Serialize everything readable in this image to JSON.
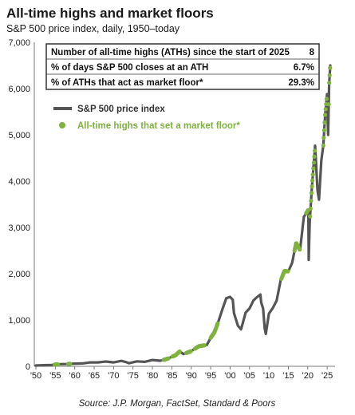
{
  "chart_data": {
    "type": "line",
    "title": "All-time highs and market floors",
    "subtitle": "S&P 500 price index, daily, 1950–today",
    "xlim": [
      1950,
      2026
    ],
    "ylim": [
      0,
      7000
    ],
    "x_ticks": [
      {
        "value": 1950,
        "label": "'50"
      },
      {
        "value": 1955,
        "label": "'55"
      },
      {
        "value": 1960,
        "label": "'60"
      },
      {
        "value": 1965,
        "label": "'65"
      },
      {
        "value": 1970,
        "label": "'70"
      },
      {
        "value": 1975,
        "label": "'75"
      },
      {
        "value": 1980,
        "label": "'80"
      },
      {
        "value": 1985,
        "label": "'85"
      },
      {
        "value": 1990,
        "label": "'90"
      },
      {
        "value": 1995,
        "label": "'95"
      },
      {
        "value": 2000,
        "label": "'00"
      },
      {
        "value": 2005,
        "label": "'05"
      },
      {
        "value": 2010,
        "label": "'10"
      },
      {
        "value": 2015,
        "label": "'15"
      },
      {
        "value": 2020,
        "label": "'20"
      },
      {
        "value": 2025,
        "label": "'25"
      }
    ],
    "y_ticks": [
      {
        "value": 0,
        "label": "0"
      },
      {
        "value": 1000,
        "label": "1,000"
      },
      {
        "value": 2000,
        "label": "2,000"
      },
      {
        "value": 3000,
        "label": "3,000"
      },
      {
        "value": 4000,
        "label": "4,000"
      },
      {
        "value": 5000,
        "label": "5,000"
      },
      {
        "value": 6000,
        "label": "6,000"
      },
      {
        "value": 7000,
        "label": "7,000"
      }
    ],
    "series": [
      {
        "name": "S&P 500 price index",
        "color": "#555555",
        "points": [
          [
            1950,
            17
          ],
          [
            1952,
            24
          ],
          [
            1954,
            30
          ],
          [
            1956,
            46
          ],
          [
            1958,
            50
          ],
          [
            1960,
            58
          ],
          [
            1962,
            62
          ],
          [
            1964,
            84
          ],
          [
            1966,
            85
          ],
          [
            1968,
            103
          ],
          [
            1970,
            85
          ],
          [
            1972,
            118
          ],
          [
            1973,
            97
          ],
          [
            1974,
            68
          ],
          [
            1976,
            107
          ],
          [
            1978,
            96
          ],
          [
            1980,
            136
          ],
          [
            1982,
            120
          ],
          [
            1984,
            167
          ],
          [
            1986,
            242
          ],
          [
            1987,
            320
          ],
          [
            1988,
            265
          ],
          [
            1990,
            330
          ],
          [
            1992,
            436
          ],
          [
            1994,
            460
          ],
          [
            1995,
            615
          ],
          [
            1996,
            740
          ],
          [
            1997,
            970
          ],
          [
            1998,
            1229
          ],
          [
            1999,
            1469
          ],
          [
            2000,
            1500
          ],
          [
            2000.7,
            1436
          ],
          [
            2001,
            1150
          ],
          [
            2002,
            880
          ],
          [
            2002.8,
            800
          ],
          [
            2003,
            850
          ],
          [
            2004,
            1160
          ],
          [
            2005,
            1250
          ],
          [
            2006,
            1420
          ],
          [
            2007,
            1500
          ],
          [
            2007.8,
            1550
          ],
          [
            2008,
            1380
          ],
          [
            2008.5,
            1250
          ],
          [
            2008.9,
            820
          ],
          [
            2009.2,
            700
          ],
          [
            2010,
            1140
          ],
          [
            2011,
            1260
          ],
          [
            2012,
            1420
          ],
          [
            2013,
            1850
          ],
          [
            2014,
            2060
          ],
          [
            2015,
            2050
          ],
          [
            2016,
            2240
          ],
          [
            2017,
            2670
          ],
          [
            2018,
            2510
          ],
          [
            2019,
            3230
          ],
          [
            2020.15,
            3380
          ],
          [
            2020.25,
            2300
          ],
          [
            2020.5,
            3100
          ],
          [
            2021,
            3800
          ],
          [
            2021.9,
            4766
          ],
          [
            2022.5,
            3800
          ],
          [
            2022.9,
            3600
          ],
          [
            2023.5,
            4450
          ],
          [
            2024,
            4770
          ],
          [
            2024.5,
            5460
          ],
          [
            2024.95,
            5880
          ],
          [
            2025.25,
            5000
          ],
          [
            2025.5,
            6100
          ],
          [
            2025.8,
            6500
          ]
        ]
      },
      {
        "name": "All-time highs that set a market floor*",
        "color": "#7fb23e",
        "segments": [
          [
            1954.8,
            1955.7
          ],
          [
            1958.3,
            1958.8
          ],
          [
            1982.9,
            1984.2
          ],
          [
            1985.2,
            1987.0
          ],
          [
            1988.7,
            1989.9
          ],
          [
            1991.0,
            1993.5
          ],
          [
            1995.0,
            1996.8
          ],
          [
            2013.2,
            2014.9
          ],
          [
            2016.6,
            2018.0
          ],
          [
            2019.6,
            2020.1
          ],
          [
            2020.6,
            2021.8
          ],
          [
            2024.0,
            2024.9
          ],
          [
            2025.4,
            2025.8
          ]
        ]
      }
    ],
    "legend": {
      "placement": "upper-left",
      "items": [
        {
          "label": "S&P 500 price index",
          "color": "#555555"
        },
        {
          "label": "All-time highs that set a market floor*",
          "color": "#7fb23e"
        }
      ]
    },
    "stats_table": [
      {
        "label": "Number of all-time highs (ATHs) since the start of 2025",
        "value": "8"
      },
      {
        "label": "% of days S&P 500 closes at an ATH",
        "value": "6.7%"
      },
      {
        "label": "% of ATHs that act as market floor*",
        "value": "29.3%"
      }
    ],
    "source": "Source:  J.P. Morgan, FactSet, Standard & Poors",
    "grid": false
  }
}
